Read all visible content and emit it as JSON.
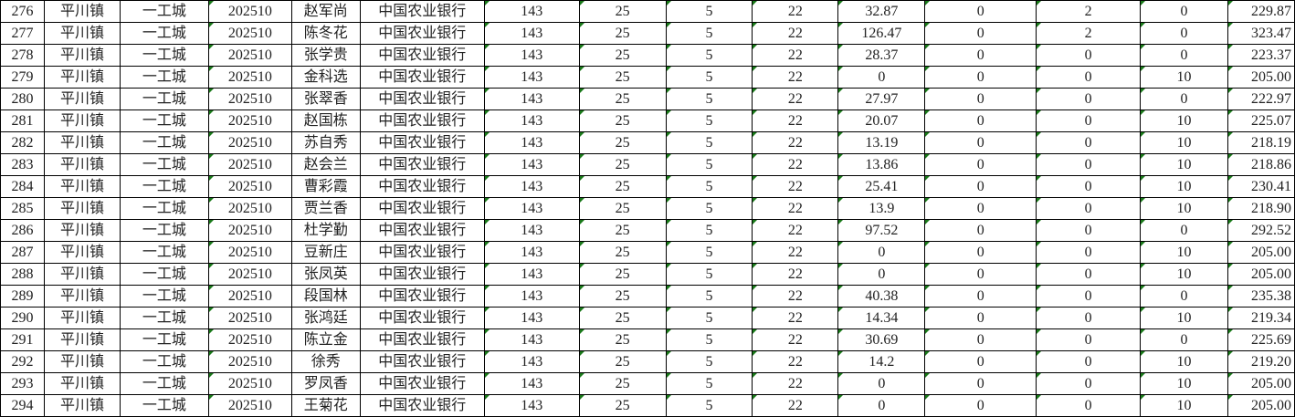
{
  "colors": {
    "grid": "#000000",
    "error_triangle": "#1a7a1a"
  },
  "rows": [
    [
      "276",
      "平川镇",
      "一工城",
      "202510",
      "赵军尚",
      "中国农业银行",
      "143",
      "25",
      "5",
      "22",
      "32.87",
      "0",
      "2",
      "0",
      "229.87"
    ],
    [
      "277",
      "平川镇",
      "一工城",
      "202510",
      "陈冬花",
      "中国农业银行",
      "143",
      "25",
      "5",
      "22",
      "126.47",
      "0",
      "2",
      "0",
      "323.47"
    ],
    [
      "278",
      "平川镇",
      "一工城",
      "202510",
      "张学贵",
      "中国农业银行",
      "143",
      "25",
      "5",
      "22",
      "28.37",
      "0",
      "0",
      "0",
      "223.37"
    ],
    [
      "279",
      "平川镇",
      "一工城",
      "202510",
      "金科选",
      "中国农业银行",
      "143",
      "25",
      "5",
      "22",
      "0",
      "0",
      "0",
      "10",
      "205.00"
    ],
    [
      "280",
      "平川镇",
      "一工城",
      "202510",
      "张翠香",
      "中国农业银行",
      "143",
      "25",
      "5",
      "22",
      "27.97",
      "0",
      "0",
      "0",
      "222.97"
    ],
    [
      "281",
      "平川镇",
      "一工城",
      "202510",
      "赵国栋",
      "中国农业银行",
      "143",
      "25",
      "5",
      "22",
      "20.07",
      "0",
      "0",
      "10",
      "225.07"
    ],
    [
      "282",
      "平川镇",
      "一工城",
      "202510",
      "苏自秀",
      "中国农业银行",
      "143",
      "25",
      "5",
      "22",
      "13.19",
      "0",
      "0",
      "10",
      "218.19"
    ],
    [
      "283",
      "平川镇",
      "一工城",
      "202510",
      "赵会兰",
      "中国农业银行",
      "143",
      "25",
      "5",
      "22",
      "13.86",
      "0",
      "0",
      "10",
      "218.86"
    ],
    [
      "284",
      "平川镇",
      "一工城",
      "202510",
      "曹彩霞",
      "中国农业银行",
      "143",
      "25",
      "5",
      "22",
      "25.41",
      "0",
      "0",
      "10",
      "230.41"
    ],
    [
      "285",
      "平川镇",
      "一工城",
      "202510",
      "贾兰香",
      "中国农业银行",
      "143",
      "25",
      "5",
      "22",
      "13.9",
      "0",
      "0",
      "10",
      "218.90"
    ],
    [
      "286",
      "平川镇",
      "一工城",
      "202510",
      "杜学勤",
      "中国农业银行",
      "143",
      "25",
      "5",
      "22",
      "97.52",
      "0",
      "0",
      "0",
      "292.52"
    ],
    [
      "287",
      "平川镇",
      "一工城",
      "202510",
      "豆新庄",
      "中国农业银行",
      "143",
      "25",
      "5",
      "22",
      "0",
      "0",
      "0",
      "10",
      "205.00"
    ],
    [
      "288",
      "平川镇",
      "一工城",
      "202510",
      "张凤英",
      "中国农业银行",
      "143",
      "25",
      "5",
      "22",
      "0",
      "0",
      "0",
      "10",
      "205.00"
    ],
    [
      "289",
      "平川镇",
      "一工城",
      "202510",
      "段国林",
      "中国农业银行",
      "143",
      "25",
      "5",
      "22",
      "40.38",
      "0",
      "0",
      "0",
      "235.38"
    ],
    [
      "290",
      "平川镇",
      "一工城",
      "202510",
      "张鸿廷",
      "中国农业银行",
      "143",
      "25",
      "5",
      "22",
      "14.34",
      "0",
      "0",
      "10",
      "219.34"
    ],
    [
      "291",
      "平川镇",
      "一工城",
      "202510",
      "陈立金",
      "中国农业银行",
      "143",
      "25",
      "5",
      "22",
      "30.69",
      "0",
      "0",
      "0",
      "225.69"
    ],
    [
      "292",
      "平川镇",
      "一工城",
      "202510",
      "徐秀",
      "中国农业银行",
      "143",
      "25",
      "5",
      "22",
      "14.2",
      "0",
      "0",
      "10",
      "219.20"
    ],
    [
      "293",
      "平川镇",
      "一工城",
      "202510",
      "罗凤香",
      "中国农业银行",
      "143",
      "25",
      "5",
      "22",
      "0",
      "0",
      "0",
      "10",
      "205.00"
    ],
    [
      "294",
      "平川镇",
      "一工城",
      "202510",
      "王菊花",
      "中国农业银行",
      "143",
      "25",
      "5",
      "22",
      "0",
      "0",
      "0",
      "10",
      "205.00"
    ]
  ]
}
